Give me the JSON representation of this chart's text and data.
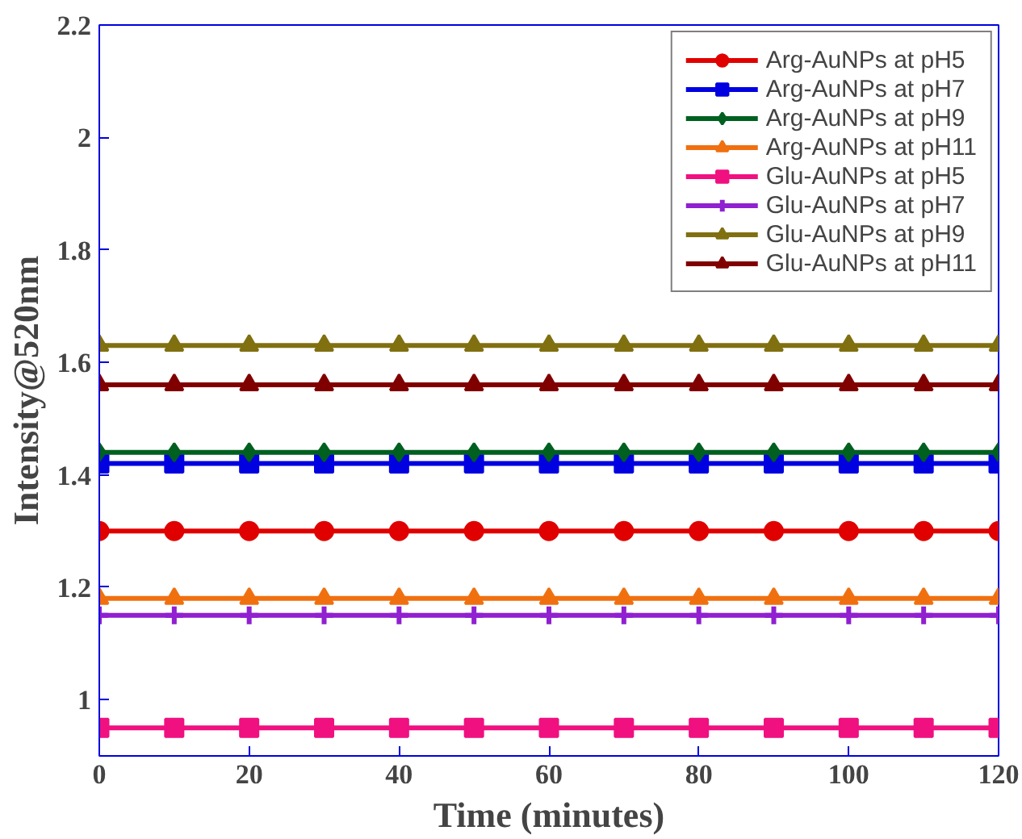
{
  "chart_data": {
    "type": "line",
    "xlabel": "Time (minutes)",
    "ylabel": "Intensity@520nm",
    "x": [
      0,
      10,
      20,
      30,
      40,
      50,
      60,
      70,
      80,
      90,
      100,
      110,
      120
    ],
    "series": [
      {
        "name": "Arg-AuNPs at pH5",
        "color": "#e00000",
        "marker": "circle",
        "values": [
          1.3,
          1.3,
          1.3,
          1.3,
          1.3,
          1.3,
          1.3,
          1.3,
          1.3,
          1.3,
          1.3,
          1.3,
          1.3
        ]
      },
      {
        "name": "Arg-AuNPs at pH7",
        "color": "#0000e0",
        "marker": "square",
        "values": [
          1.42,
          1.42,
          1.42,
          1.42,
          1.42,
          1.42,
          1.42,
          1.42,
          1.42,
          1.42,
          1.42,
          1.42,
          1.42
        ]
      },
      {
        "name": "Arg-AuNPs at pH9",
        "color": "#006020",
        "marker": "diamond",
        "values": [
          1.44,
          1.44,
          1.44,
          1.44,
          1.44,
          1.44,
          1.44,
          1.44,
          1.44,
          1.44,
          1.44,
          1.44,
          1.44
        ]
      },
      {
        "name": "Arg-AuNPs at pH11",
        "color": "#f07010",
        "marker": "triangle",
        "values": [
          1.18,
          1.18,
          1.18,
          1.18,
          1.18,
          1.18,
          1.18,
          1.18,
          1.18,
          1.18,
          1.18,
          1.18,
          1.18
        ]
      },
      {
        "name": "Glu-AuNPs at pH5",
        "color": "#f01080",
        "marker": "square",
        "values": [
          0.95,
          0.95,
          0.95,
          0.95,
          0.95,
          0.95,
          0.95,
          0.95,
          0.95,
          0.95,
          0.95,
          0.95,
          0.95
        ]
      },
      {
        "name": "Glu-AuNPs at pH7",
        "color": "#9020d0",
        "marker": "cross",
        "values": [
          1.15,
          1.15,
          1.15,
          1.15,
          1.15,
          1.15,
          1.15,
          1.15,
          1.15,
          1.15,
          1.15,
          1.15,
          1.15
        ]
      },
      {
        "name": "Glu-AuNPs at pH9",
        "color": "#807010",
        "marker": "triangle",
        "values": [
          1.63,
          1.63,
          1.63,
          1.63,
          1.63,
          1.63,
          1.63,
          1.63,
          1.63,
          1.63,
          1.63,
          1.63,
          1.63
        ]
      },
      {
        "name": "Glu-AuNPs at pH11",
        "color": "#800000",
        "marker": "triangle",
        "values": [
          1.56,
          1.56,
          1.56,
          1.56,
          1.56,
          1.56,
          1.56,
          1.56,
          1.56,
          1.56,
          1.56,
          1.56,
          1.56
        ]
      }
    ],
    "xlim": [
      0,
      120
    ],
    "xticks": [
      0,
      20,
      40,
      60,
      80,
      100,
      120
    ],
    "ylim": [
      0.9,
      2.2
    ],
    "yticks": [
      1,
      1.2,
      1.4,
      1.6,
      1.8,
      2,
      2.2
    ],
    "legend": "top right",
    "grid": false
  }
}
